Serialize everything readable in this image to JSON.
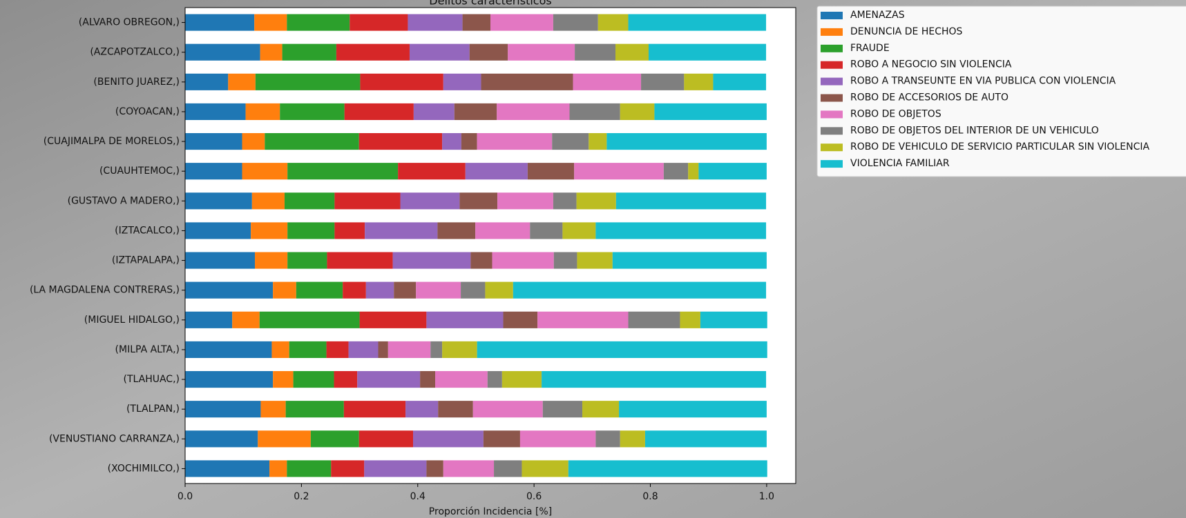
{
  "chart_data": {
    "type": "stacked-barh",
    "title": "Delitos característicos",
    "xlabel": "Proporción Incidencia [%]",
    "categories": [
      "(ALVARO OBREGON,)",
      "(AZCAPOTZALCO,)",
      "(BENITO JUAREZ,)",
      "(COYOACAN,)",
      "(CUAJIMALPA DE MORELOS,)",
      "(CUAUHTEMOC,)",
      "(GUSTAVO A MADERO,)",
      "(IZTACALCO,)",
      "(IZTAPALAPA,)",
      "(LA MAGDALENA CONTRERAS,)",
      "(MIGUEL HIDALGO,)",
      "(MILPA ALTA,)",
      "(TLAHUAC,)",
      "(TLALPAN,)",
      "(VENUSTIANO CARRANZA,)",
      "(XOCHIMILCO,)"
    ],
    "series": [
      {
        "name": "AMENAZAS",
        "color": "#1f77b4",
        "values": [
          0.119,
          0.129,
          0.074,
          0.104,
          0.098,
          0.098,
          0.115,
          0.113,
          0.12,
          0.151,
          0.081,
          0.149,
          0.151,
          0.13,
          0.125,
          0.145
        ]
      },
      {
        "name": "DENUNCIA DE HECHOS",
        "color": "#ff7f0e",
        "values": [
          0.056,
          0.038,
          0.047,
          0.059,
          0.039,
          0.078,
          0.056,
          0.063,
          0.056,
          0.04,
          0.047,
          0.03,
          0.035,
          0.043,
          0.091,
          0.03
        ]
      },
      {
        "name": "FRAUDE",
        "color": "#2ca02c",
        "values": [
          0.108,
          0.093,
          0.18,
          0.111,
          0.162,
          0.19,
          0.086,
          0.081,
          0.068,
          0.08,
          0.172,
          0.064,
          0.07,
          0.1,
          0.083,
          0.076
        ]
      },
      {
        "name": "ROBO A NEGOCIO SIN VIOLENCIA",
        "color": "#d62728",
        "values": [
          0.1,
          0.126,
          0.143,
          0.119,
          0.143,
          0.116,
          0.113,
          0.052,
          0.113,
          0.04,
          0.115,
          0.038,
          0.04,
          0.106,
          0.093,
          0.057
        ]
      },
      {
        "name": "ROBO A TRANSEUNTE EN VIA PUBLICA CON VIOLENCIA",
        "color": "#9467bd",
        "values": [
          0.094,
          0.103,
          0.065,
          0.07,
          0.033,
          0.107,
          0.102,
          0.125,
          0.134,
          0.048,
          0.132,
          0.051,
          0.108,
          0.056,
          0.121,
          0.107
        ]
      },
      {
        "name": "ROBO DE ACCESORIOS DE AUTO",
        "color": "#8c564b",
        "values": [
          0.048,
          0.066,
          0.158,
          0.073,
          0.027,
          0.08,
          0.065,
          0.065,
          0.037,
          0.038,
          0.059,
          0.017,
          0.026,
          0.06,
          0.063,
          0.029
        ]
      },
      {
        "name": "ROBO DE OBJETOS",
        "color": "#e377c2",
        "values": [
          0.108,
          0.115,
          0.117,
          0.125,
          0.129,
          0.154,
          0.096,
          0.094,
          0.106,
          0.077,
          0.156,
          0.073,
          0.09,
          0.12,
          0.13,
          0.087
        ]
      },
      {
        "name": "ROBO DE OBJETOS DEL INTERIOR DE UN VEHICULO",
        "color": "#7f7f7f",
        "values": [
          0.077,
          0.07,
          0.074,
          0.087,
          0.063,
          0.042,
          0.04,
          0.056,
          0.04,
          0.042,
          0.089,
          0.02,
          0.025,
          0.068,
          0.042,
          0.048
        ]
      },
      {
        "name": "ROBO DE VEHICULO DE SERVICIO PARTICULAR SIN VIOLENCIA",
        "color": "#bcbd22",
        "values": [
          0.052,
          0.057,
          0.05,
          0.059,
          0.031,
          0.018,
          0.068,
          0.057,
          0.061,
          0.048,
          0.035,
          0.06,
          0.068,
          0.063,
          0.043,
          0.08
        ]
      },
      {
        "name": "VIOLENCIA FAMILIAR",
        "color": "#17becf",
        "values": [
          0.237,
          0.202,
          0.091,
          0.193,
          0.275,
          0.117,
          0.258,
          0.293,
          0.265,
          0.435,
          0.115,
          0.499,
          0.386,
          0.254,
          0.209,
          0.342
        ]
      }
    ],
    "xlim": [
      0,
      1.05
    ],
    "xticks": [
      {
        "value": 0,
        "label": "0.0"
      },
      0.2,
      0.4,
      0.6,
      0.8,
      {
        "value": 1,
        "label": "1.0"
      }
    ]
  }
}
